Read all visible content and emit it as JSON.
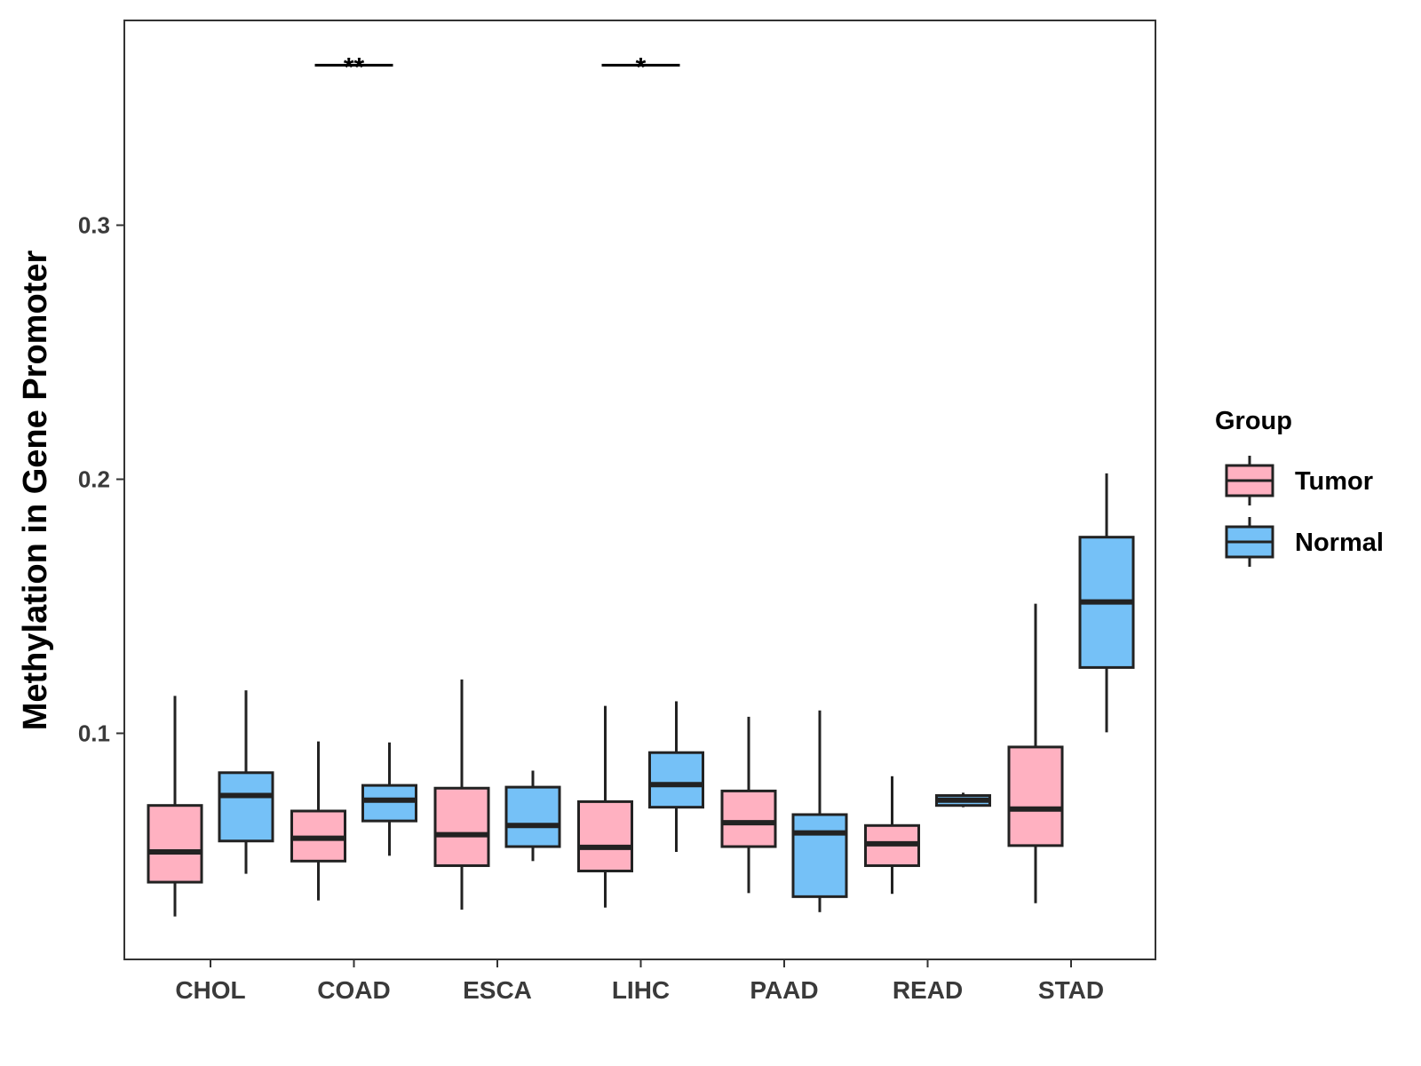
{
  "chart_data": {
    "type": "boxplot",
    "title": "",
    "xlabel": "",
    "ylabel": "Methylation in Gene Promoter",
    "ylim": [
      0.011,
      0.3806
    ],
    "yticks": [
      0.1,
      0.2,
      0.3
    ],
    "ytick_labels": [
      "0.1",
      "0.2",
      "0.3"
    ],
    "categories": [
      "CHOL",
      "COAD",
      "ESCA",
      "LIHC",
      "PAAD",
      "READ",
      "STAD"
    ],
    "legend": {
      "title": "Group",
      "position": "right",
      "entries": [
        {
          "name": "Tumor",
          "color": "#FFB1C1"
        },
        {
          "name": "Normal",
          "color": "#75C1F7"
        }
      ]
    },
    "series": [
      {
        "name": "Tumor",
        "color": "#FFB1C1",
        "boxes": [
          {
            "category": "CHOL",
            "whisker_low": 0.0279,
            "q1": 0.0414,
            "median": 0.0533,
            "q3": 0.0716,
            "whisker_high": 0.1147
          },
          {
            "category": "COAD",
            "whisker_low": 0.0342,
            "q1": 0.0497,
            "median": 0.0587,
            "q3": 0.0694,
            "whisker_high": 0.0968
          },
          {
            "category": "ESCA",
            "whisker_low": 0.0306,
            "q1": 0.0479,
            "median": 0.0601,
            "q3": 0.0784,
            "whisker_high": 0.1212
          },
          {
            "category": "LIHC",
            "whisker_low": 0.0314,
            "q1": 0.0458,
            "median": 0.0551,
            "q3": 0.0731,
            "whisker_high": 0.1108
          },
          {
            "category": "PAAD",
            "whisker_low": 0.0371,
            "q1": 0.0554,
            "median": 0.0648,
            "q3": 0.0773,
            "whisker_high": 0.1065
          },
          {
            "category": "READ",
            "whisker_low": 0.0368,
            "q1": 0.0479,
            "median": 0.0565,
            "q3": 0.0637,
            "whisker_high": 0.0831
          },
          {
            "category": "STAD",
            "whisker_low": 0.0331,
            "q1": 0.0558,
            "median": 0.0702,
            "q3": 0.0946,
            "whisker_high": 0.151
          }
        ]
      },
      {
        "name": "Normal",
        "color": "#75C1F7",
        "boxes": [
          {
            "category": "CHOL",
            "whisker_low": 0.0447,
            "q1": 0.0576,
            "median": 0.0755,
            "q3": 0.0845,
            "whisker_high": 0.1169
          },
          {
            "category": "COAD",
            "whisker_low": 0.0518,
            "q1": 0.0655,
            "median": 0.0737,
            "q3": 0.0795,
            "whisker_high": 0.0964
          },
          {
            "category": "ESCA",
            "whisker_low": 0.0497,
            "q1": 0.0554,
            "median": 0.0637,
            "q3": 0.0788,
            "whisker_high": 0.0853
          },
          {
            "category": "LIHC",
            "whisker_low": 0.0533,
            "q1": 0.0709,
            "median": 0.0798,
            "q3": 0.0924,
            "whisker_high": 0.1126
          },
          {
            "category": "PAAD",
            "whisker_low": 0.0296,
            "q1": 0.0357,
            "median": 0.0608,
            "q3": 0.068,
            "whisker_high": 0.109
          },
          {
            "category": "READ",
            "whisker_low": 0.0709,
            "q1": 0.0716,
            "median": 0.0737,
            "q3": 0.0755,
            "whisker_high": 0.0766
          },
          {
            "category": "STAD",
            "whisker_low": 0.1004,
            "q1": 0.1259,
            "median": 0.1517,
            "q3": 0.1772,
            "whisker_high": 0.2023
          }
        ]
      }
    ],
    "annotations": [
      {
        "category": "COAD",
        "label": "**",
        "y": 0.363
      },
      {
        "category": "LIHC",
        "label": "*",
        "y": 0.363
      }
    ]
  }
}
